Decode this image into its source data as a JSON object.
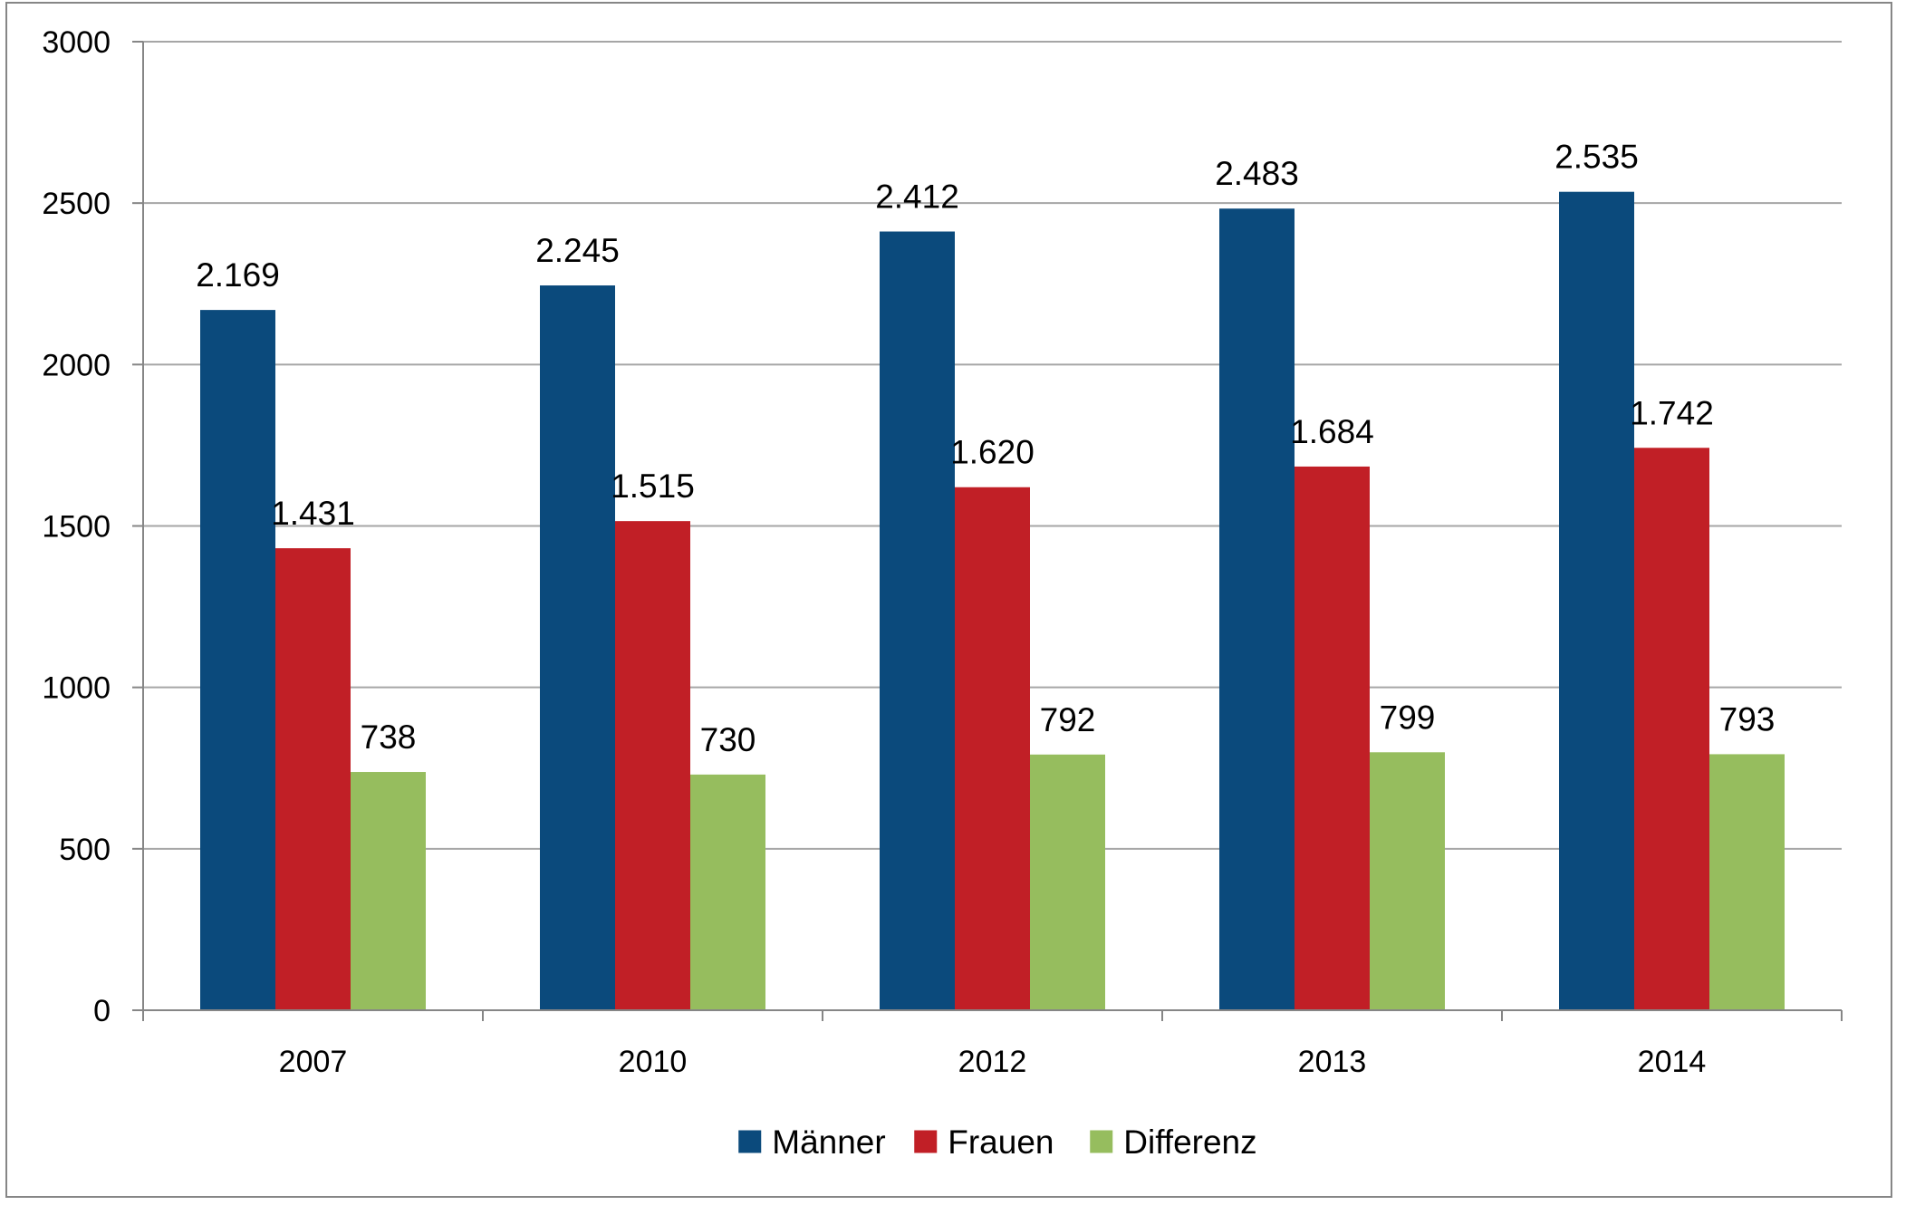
{
  "chart_data": {
    "type": "bar",
    "title": "",
    "xlabel": "",
    "ylabel": "",
    "categories": [
      "2007",
      "2010",
      "2012",
      "2013",
      "2014"
    ],
    "ylim": [
      0,
      3000
    ],
    "yticks": [
      0,
      500,
      1000,
      1500,
      2000,
      2500,
      3000
    ],
    "ytick_labels": [
      "0",
      "500",
      "1000",
      "1500",
      "2000",
      "2500",
      "3000"
    ],
    "grid": true,
    "legend_position": "bottom",
    "series": [
      {
        "name": "Männer",
        "color": "#0b4a7c",
        "values": [
          2169,
          2245,
          2412,
          2483,
          2535
        ],
        "labels": [
          "2.169",
          "2.245",
          "2.412",
          "2.483",
          "2.535"
        ]
      },
      {
        "name": "Frauen",
        "color": "#c11f26",
        "values": [
          1431,
          1515,
          1620,
          1684,
          1742
        ],
        "labels": [
          "1.431",
          "1.515",
          "1.620",
          "1.684",
          "1.742"
        ]
      },
      {
        "name": "Differenz",
        "color": "#96bd5e",
        "values": [
          738,
          730,
          792,
          799,
          793
        ],
        "labels": [
          "738",
          "730",
          "792",
          "799",
          "793"
        ]
      }
    ]
  },
  "colors": {
    "gridline": "#a6a6a6",
    "axis": "#868686",
    "frame": "#868686",
    "background": "#ffffff"
  }
}
